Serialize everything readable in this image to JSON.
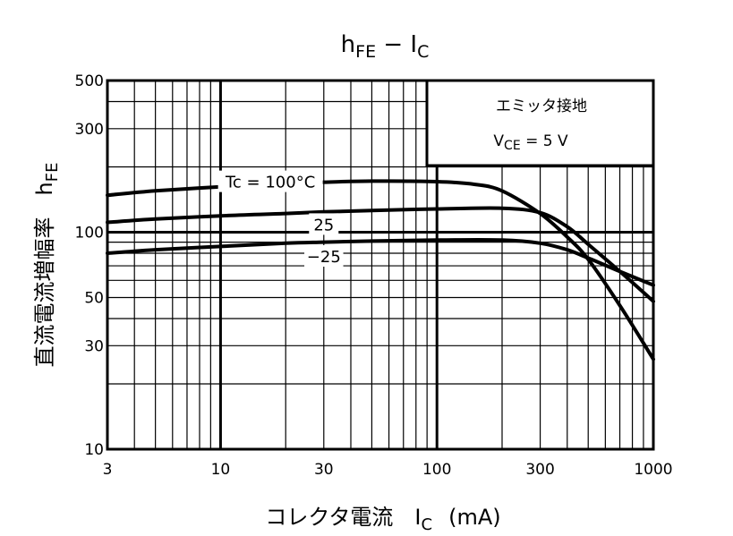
{
  "chart_data": {
    "type": "line",
    "title": {
      "main": "h",
      "sub1": "FE",
      "dash": " − I",
      "sub2": "C"
    },
    "xlabel": {
      "text": "コレクタ電流　I",
      "sub": "C",
      "unit": "(mA)"
    },
    "ylabel": {
      "text": "直流電流増幅率　h",
      "sub": "FE"
    },
    "x_scale": "log",
    "y_scale": "log",
    "xlim": [
      3,
      1000
    ],
    "ylim": [
      10,
      500
    ],
    "x_ticks": [
      {
        "value": 3,
        "label": "3"
      },
      {
        "value": 10,
        "label": "10"
      },
      {
        "value": 30,
        "label": "30"
      },
      {
        "value": 100,
        "label": "100"
      },
      {
        "value": 300,
        "label": "300"
      },
      {
        "value": 1000,
        "label": "1000"
      }
    ],
    "y_ticks": [
      {
        "value": 10,
        "label": "10"
      },
      {
        "value": 30,
        "label": "30"
      },
      {
        "value": 50,
        "label": "50"
      },
      {
        "value": 100,
        "label": "100"
      },
      {
        "value": 300,
        "label": "300"
      },
      {
        "value": 500,
        "label": "500"
      }
    ],
    "x_grid": [
      4,
      5,
      6,
      7,
      8,
      9,
      20,
      40,
      50,
      60,
      70,
      80,
      90,
      200,
      400,
      500,
      600,
      700,
      800,
      900
    ],
    "y_grid": [
      20,
      40,
      60,
      70,
      80,
      90,
      200,
      400
    ],
    "x_grid_major": [
      10,
      100
    ],
    "y_grid_major": [
      100
    ],
    "grid": true,
    "annotation": {
      "line1": "エミッタ接地",
      "line2_main": "V",
      "line2_sub": "CE",
      "line2_rest": " = 5 V"
    },
    "series": [
      {
        "label": "Tc = 100°C",
        "label_anchor": [
          17,
          170
        ],
        "x": [
          3,
          5,
          10,
          20,
          30,
          50,
          100,
          150,
          200,
          300,
          400,
          500,
          700,
          1000
        ],
        "y": [
          148,
          155,
          162,
          168,
          170,
          172,
          171,
          166,
          155,
          122,
          95,
          75,
          46,
          26
        ]
      },
      {
        "label": "25",
        "label_anchor": [
          30,
          108
        ],
        "x": [
          3,
          5,
          10,
          20,
          30,
          50,
          100,
          200,
          300,
          400,
          500,
          700,
          1000
        ],
        "y": [
          111,
          115,
          119,
          122,
          124,
          126,
          128,
          129,
          123,
          106,
          88,
          66,
          48
        ]
      },
      {
        "label": "−25",
        "label_anchor": [
          30,
          77
        ],
        "x": [
          3,
          5,
          10,
          20,
          30,
          50,
          100,
          200,
          300,
          400,
          500,
          700,
          1000
        ],
        "y": [
          80,
          83,
          86,
          89,
          90,
          91,
          92,
          92,
          89,
          83,
          76,
          66,
          57
        ]
      }
    ]
  }
}
